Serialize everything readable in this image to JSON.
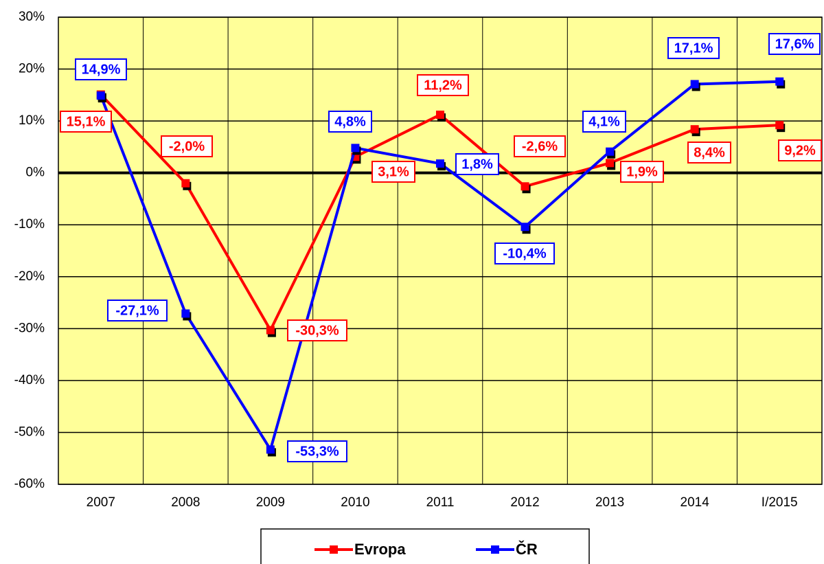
{
  "chart_data": {
    "type": "line",
    "categories": [
      "2007",
      "2008",
      "2009",
      "2010",
      "2011",
      "2012",
      "2013",
      "2014",
      "I/2015"
    ],
    "series": [
      {
        "name": "Evropa",
        "color": "#ff0000",
        "values": [
          15.1,
          -2.0,
          -30.3,
          3.1,
          11.2,
          -2.6,
          1.9,
          8.4,
          9.2
        ],
        "value_labels": [
          "15,1%",
          "-2,0%",
          "-30,3%",
          "3,1%",
          "11,2%",
          "-2,6%",
          "1,9%",
          "8,4%",
          "9,2%"
        ]
      },
      {
        "name": "ČR",
        "color": "#0000ff",
        "values": [
          14.9,
          -27.1,
          -53.3,
          4.8,
          1.8,
          -10.4,
          4.1,
          17.1,
          17.6
        ],
        "value_labels": [
          "14,9%",
          "-27,1%",
          "-53,3%",
          "4,8%",
          "1,8%",
          "-10,4%",
          "4,1%",
          "17,1%",
          "17,6%"
        ]
      }
    ],
    "ylim": [
      -60,
      30
    ],
    "yticks": [
      {
        "value": -60,
        "label": "-60%"
      },
      {
        "value": -50,
        "label": "-50%"
      },
      {
        "value": -40,
        "label": "-40%"
      },
      {
        "value": -30,
        "label": "-30%"
      },
      {
        "value": -20,
        "label": "-20%"
      },
      {
        "value": -10,
        "label": "-10%"
      },
      {
        "value": 0,
        "label": "0%"
      },
      {
        "value": 10,
        "label": "10%"
      },
      {
        "value": 20,
        "label": "20%"
      },
      {
        "value": 30,
        "label": "30%"
      }
    ],
    "grid": true,
    "legend": "bottom",
    "background": "#ffff99"
  }
}
